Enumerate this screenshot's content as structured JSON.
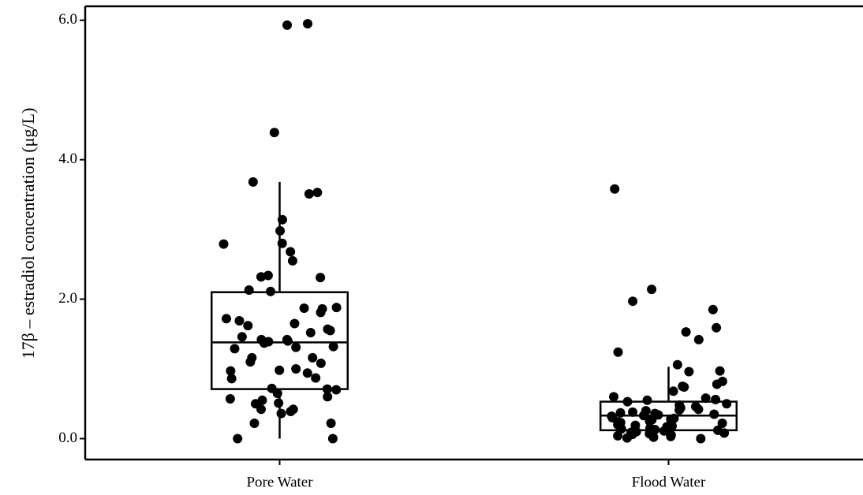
{
  "chart_data": {
    "type": "box",
    "y_label": "17β – estradiol concentration (μg/L)",
    "categories": [
      "Pore Water",
      "Flood Water"
    ],
    "color": "#000000",
    "ylim": [
      -0.3,
      6.2
    ],
    "yticks": [
      {
        "value": 0,
        "label": "0.0"
      },
      {
        "value": 2,
        "label": "2.0"
      },
      {
        "value": 4,
        "label": "4.0"
      },
      {
        "value": 6,
        "label": "6.0"
      }
    ],
    "boxes": [
      {
        "whisker_low": 0.0,
        "q1": 0.71,
        "median": 1.38,
        "q3": 2.1,
        "whisker_high": 3.68
      },
      {
        "whisker_low": 0.0,
        "q1": 0.12,
        "median": 0.33,
        "q3": 0.53,
        "whisker_high": 1.03
      }
    ],
    "points": [
      [
        5.95,
        5.93,
        4.39,
        3.68,
        3.53,
        3.51,
        2.98,
        3.14,
        2.8,
        2.79,
        2.68,
        2.55,
        2.34,
        2.31,
        2.32,
        2.11,
        2.13,
        1.88,
        1.87,
        1.86,
        1.81,
        1.72,
        1.65,
        1.55,
        1.62,
        1.52,
        1.69,
        1.57,
        1.46,
        1.42,
        1.42,
        1.37,
        1.39,
        1.4,
        1.29,
        1.31,
        1.32,
        1.1,
        1.16,
        1.16,
        1.08,
        1.0,
        0.97,
        0.98,
        0.87,
        0.94,
        0.86,
        0.72,
        0.7,
        0.71,
        0.65,
        0.55,
        0.51,
        0.57,
        0.6,
        0.5,
        0.42,
        0.42,
        0.39,
        0.36,
        0.22,
        0.22,
        0.0,
        0.0
      ],
      [
        3.58,
        2.14,
        1.85,
        1.97,
        1.59,
        1.53,
        1.42,
        1.24,
        0.96,
        0.97,
        1.06,
        0.68,
        0.74,
        0.75,
        0.82,
        0.78,
        0.6,
        0.58,
        0.56,
        0.55,
        0.53,
        0.5,
        0.48,
        0.46,
        0.44,
        0.42,
        0.41,
        0.4,
        0.38,
        0.37,
        0.36,
        0.35,
        0.34,
        0.33,
        0.32,
        0.3,
        0.29,
        0.28,
        0.27,
        0.25,
        0.24,
        0.23,
        0.22,
        0.2,
        0.19,
        0.18,
        0.17,
        0.15,
        0.14,
        0.13,
        0.12,
        0.11,
        0.1,
        0.09,
        0.08,
        0.07,
        0.06,
        0.05,
        0.04,
        0.03,
        0.02,
        0.01,
        0.0
      ]
    ]
  }
}
